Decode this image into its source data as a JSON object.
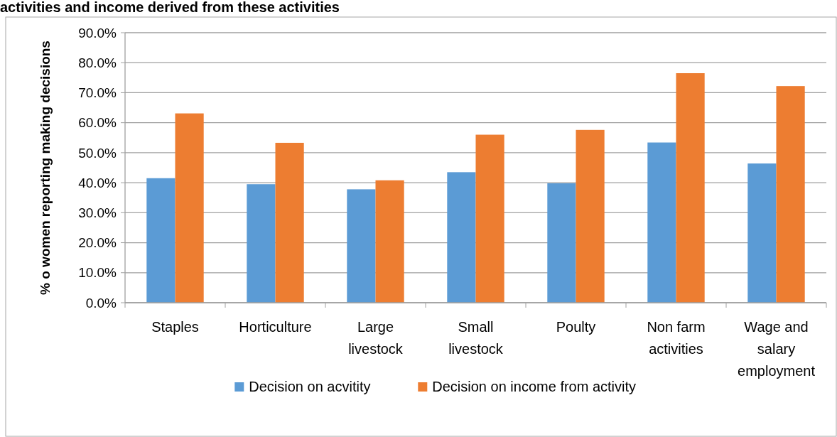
{
  "chart_data": {
    "type": "bar",
    "title": "activities and income derived from these activities",
    "ylabel": "% o women reporting making decisions",
    "categories": [
      "Staples",
      "Horticulture",
      "Large livestock",
      "Small livestock",
      "Poulty",
      "Non farm activities",
      "Wage and salary employment"
    ],
    "series": [
      {
        "name": "Decision on acvitity",
        "color": "#5b9bd5",
        "values": [
          41.5,
          39.5,
          37.8,
          43.5,
          39.8,
          53.4,
          46.4
        ]
      },
      {
        "name": "Decision on income from activity",
        "color": "#ed7d31",
        "values": [
          63.1,
          53.3,
          40.8,
          56.0,
          57.6,
          76.5,
          72.2
        ]
      }
    ],
    "ylim": [
      0,
      90
    ],
    "yticks": [
      {
        "value": 0,
        "label": "0.0%"
      },
      {
        "value": 10,
        "label": "10.0%"
      },
      {
        "value": 20,
        "label": "20.0%"
      },
      {
        "value": 30,
        "label": "30.0%"
      },
      {
        "value": 40,
        "label": "40.0%"
      },
      {
        "value": 50,
        "label": "50.0%"
      },
      {
        "value": 60,
        "label": "60.0%"
      },
      {
        "value": 70,
        "label": "70.0%"
      },
      {
        "value": 80,
        "label": "80.0%"
      },
      {
        "value": 90,
        "label": "90.0%"
      }
    ],
    "grid": "y",
    "legend": "bottom"
  }
}
